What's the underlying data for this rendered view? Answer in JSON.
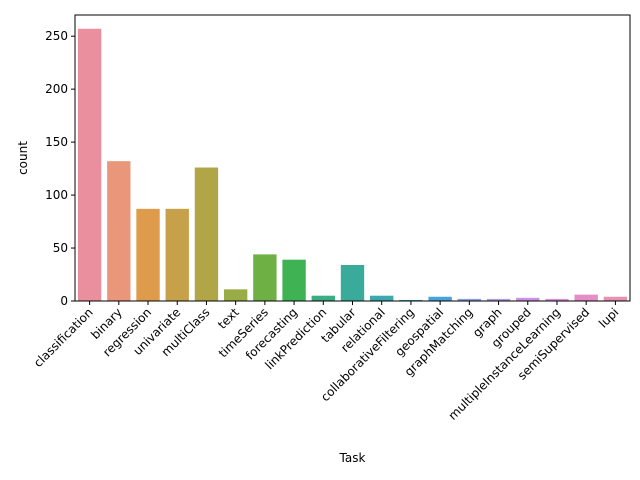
{
  "chart_data": {
    "type": "bar",
    "xlabel": "Task",
    "ylabel": "count",
    "ylim": [
      0,
      270
    ],
    "yticks": [
      0,
      50,
      100,
      150,
      200,
      250
    ],
    "grid": false,
    "categories": [
      "classification",
      "binary",
      "regression",
      "univariate",
      "multiClass",
      "text",
      "timeSeries",
      "forecasting",
      "linkPrediction",
      "tabular",
      "relational",
      "collaborativeFiltering",
      "geospatial",
      "graphMatching",
      "graph",
      "grouped",
      "multipleInstanceLearning",
      "semiSupervised",
      "lupi"
    ],
    "values": [
      257,
      132,
      87,
      87,
      126,
      11,
      44,
      39,
      5,
      34,
      5,
      1,
      4,
      2,
      2,
      3,
      2,
      6,
      4
    ],
    "colors": [
      "#ea8f9e",
      "#e9967a",
      "#de9b4b",
      "#c7a04a",
      "#b0a648",
      "#99ac46",
      "#6fb045",
      "#3fb354",
      "#3aae83",
      "#3aab9a",
      "#3ba9ad",
      "#3ea7c1",
      "#47a2dd",
      "#8c9ce6",
      "#b29ae8",
      "#c992e6",
      "#dd8ee0",
      "#e68cc8",
      "#e891b2"
    ]
  }
}
